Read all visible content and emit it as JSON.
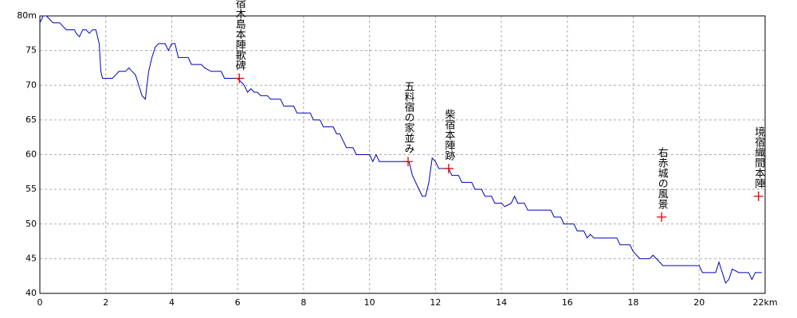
{
  "chart_data": {
    "type": "line",
    "x": [
      0,
      0.1,
      0.2,
      0.3,
      0.4,
      0.6,
      0.7,
      0.8,
      1.05,
      1.1,
      1.2,
      1.3,
      1.4,
      1.5,
      1.6,
      1.7,
      1.8,
      1.85,
      1.9,
      2.2,
      2.3,
      2.4,
      2.6,
      2.7,
      2.8,
      2.9,
      3.0,
      3.1,
      3.2,
      3.3,
      3.4,
      3.5,
      3.6,
      3.8,
      3.9,
      4.0,
      4.1,
      4.2,
      4.5,
      4.6,
      4.9,
      5.0,
      5.2,
      5.5,
      5.6,
      6.0,
      6.2,
      6.3,
      6.4,
      6.5,
      6.6,
      6.7,
      6.9,
      7.0,
      7.3,
      7.4,
      7.7,
      7.8,
      8.2,
      8.3,
      8.5,
      8.6,
      8.9,
      9.0,
      9.1,
      9.2,
      9.3,
      9.5,
      9.6,
      10.0,
      10.1,
      10.2,
      10.3,
      11.2,
      11.3,
      11.5,
      11.6,
      11.7,
      11.8,
      11.9,
      12.0,
      12.1,
      12.4,
      12.5,
      12.7,
      12.8,
      13.1,
      13.2,
      13.4,
      13.5,
      13.7,
      13.8,
      14.0,
      14.1,
      14.3,
      14.4,
      14.5,
      14.7,
      14.8,
      15.5,
      15.6,
      15.8,
      15.9,
      16.2,
      16.3,
      16.5,
      16.6,
      16.7,
      16.8,
      17.5,
      17.6,
      17.9,
      18.0,
      18.2,
      18.5,
      18.6,
      18.7,
      18.9,
      20.0,
      20.1,
      20.5,
      20.6,
      20.8,
      20.9,
      21.0,
      21.2,
      21.5,
      21.55,
      21.6,
      21.7,
      21.9
    ],
    "series": [
      {
        "color": "#0000c0",
        "values": [
          79,
          80,
          80,
          79.5,
          79,
          79,
          78.5,
          78,
          78,
          77.5,
          77,
          78,
          78,
          77.5,
          78,
          78,
          76,
          72,
          71,
          71,
          71.5,
          72,
          72,
          72.5,
          72,
          71.5,
          70,
          68.5,
          68,
          72,
          74,
          75.5,
          76,
          76,
          75,
          76,
          76,
          74,
          74,
          73,
          73,
          72.5,
          72,
          72,
          71,
          71,
          70,
          69,
          69.5,
          69,
          69,
          68.5,
          68.5,
          68,
          68,
          67,
          67,
          66,
          66,
          65,
          65,
          64,
          64,
          63,
          63,
          62,
          61,
          61,
          60,
          60,
          59,
          60,
          59,
          59,
          57,
          55,
          54,
          54,
          56,
          59.5,
          59,
          58,
          58,
          57,
          57,
          56,
          56,
          55,
          55,
          54,
          54,
          53,
          53,
          52.5,
          53,
          54,
          53,
          53,
          52,
          52,
          51,
          51,
          50,
          50,
          49,
          49,
          48,
          48.5,
          48,
          48,
          47,
          47,
          46,
          45,
          45,
          45.5,
          45,
          44,
          44,
          43,
          43,
          44.5,
          41.5,
          42,
          43.5,
          43,
          43,
          42.5,
          42,
          43,
          43
        ]
      }
    ],
    "xlim": [
      0,
      22
    ],
    "ylim": [
      40,
      80
    ],
    "xticks": [
      0,
      2,
      4,
      6,
      8,
      10,
      12,
      14,
      16,
      18,
      20,
      {
        "value": 22,
        "label": "22km"
      }
    ],
    "yticks": [
      40,
      45,
      50,
      55,
      60,
      65,
      70,
      {
        "value": 75,
        "label": "75"
      },
      {
        "value": 80,
        "label": "80m"
      }
    ],
    "grid": true,
    "annotations": [
      {
        "label": "村宿木島本陣歌碑",
        "x": 6.05,
        "y": 71
      },
      {
        "label": "五料宿の家並み",
        "x": 11.17,
        "y": 59
      },
      {
        "label": "柴宿本陣跡",
        "x": 12.4,
        "y": 58
      },
      {
        "label": "右赤城の風景",
        "x": 18.86,
        "y": 51
      },
      {
        "label": "境宿織間本陣",
        "x": 21.8,
        "y": 54
      }
    ],
    "annotation_color": "#008000",
    "marker_color": "#e00000"
  }
}
